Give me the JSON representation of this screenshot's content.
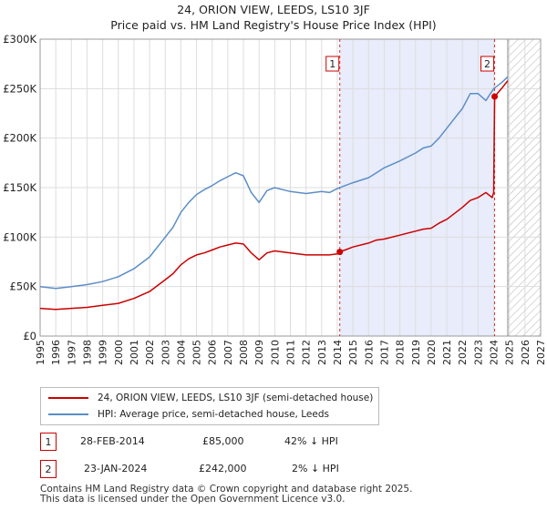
{
  "title": {
    "line1": "24, ORION VIEW, LEEDS, LS10 3JF",
    "line2": "Price paid vs. HM Land Registry's House Price Index (HPI)"
  },
  "chart_data": {
    "type": "line",
    "xlim": [
      1995,
      2027
    ],
    "ylim": [
      0,
      300000
    ],
    "y_ticks": [
      {
        "value": 0,
        "label": "£0"
      },
      {
        "value": 50000,
        "label": "£50K"
      },
      {
        "value": 100000,
        "label": "£100K"
      },
      {
        "value": 150000,
        "label": "£150K"
      },
      {
        "value": 200000,
        "label": "£200K"
      },
      {
        "value": 250000,
        "label": "£250K"
      },
      {
        "value": 300000,
        "label": "£300K"
      }
    ],
    "x_ticks": [
      1995,
      1996,
      1997,
      1998,
      1999,
      2000,
      2001,
      2002,
      2003,
      2004,
      2005,
      2006,
      2007,
      2008,
      2009,
      2010,
      2011,
      2012,
      2013,
      2014,
      2015,
      2016,
      2017,
      2018,
      2019,
      2020,
      2021,
      2022,
      2023,
      2024,
      2025,
      2026,
      2027
    ],
    "grid": true,
    "shaded_region": [
      2014.16,
      2024.06
    ],
    "forecast_start": 2024.9,
    "series": [
      {
        "name": "HPI: Average price, semi-detached house, Leeds",
        "color": "#5b8ec8",
        "x": [
          1995,
          1996,
          1997,
          1998,
          1999,
          2000,
          2001,
          2002,
          2003,
          2003.5,
          2004,
          2004.5,
          2005,
          2005.5,
          2006,
          2006.5,
          2007,
          2007.5,
          2008,
          2008.5,
          2009,
          2009.5,
          2010,
          2010.5,
          2011,
          2012,
          2013,
          2013.5,
          2014,
          2014.5,
          2015,
          2016,
          2016.5,
          2017,
          2018,
          2019,
          2019.5,
          2020,
          2020.5,
          2021,
          2021.5,
          2022,
          2022.5,
          2023,
          2023.5,
          2024,
          2024.5,
          2024.9
        ],
        "values": [
          50000,
          48000,
          50000,
          52000,
          55000,
          60000,
          68000,
          80000,
          100000,
          110000,
          125000,
          135000,
          143000,
          148000,
          152000,
          157000,
          161000,
          165000,
          162000,
          145000,
          135000,
          147000,
          150000,
          148000,
          146000,
          144000,
          146000,
          145000,
          149000,
          152000,
          155000,
          160000,
          165000,
          170000,
          177000,
          185000,
          190000,
          192000,
          200000,
          210000,
          220000,
          230000,
          245000,
          245000,
          238000,
          250000,
          256000,
          262000
        ]
      },
      {
        "name": "24, ORION VIEW, LEEDS, LS10 3JF (semi-detached house)",
        "color": "#cc0000",
        "x": [
          1995,
          1996,
          1997,
          1998,
          1999,
          2000,
          2001,
          2002,
          2003,
          2003.5,
          2004,
          2004.5,
          2005,
          2005.5,
          2006,
          2006.5,
          2007,
          2007.5,
          2008,
          2008.5,
          2009,
          2009.5,
          2010,
          2010.5,
          2011,
          2012,
          2013,
          2013.5,
          2014,
          2014.16,
          2014.5,
          2015,
          2016,
          2016.5,
          2017,
          2018,
          2019,
          2019.5,
          2020,
          2020.5,
          2021,
          2021.5,
          2022,
          2022.5,
          2023,
          2023.5,
          2023.9,
          2024.0,
          2024.06,
          2024.5,
          2024.9
        ],
        "values": [
          28000,
          27000,
          28000,
          29000,
          31000,
          33000,
          38000,
          45000,
          57000,
          63000,
          72000,
          78000,
          82000,
          84000,
          87000,
          90000,
          92000,
          94000,
          93000,
          84000,
          77000,
          84000,
          86000,
          85000,
          84000,
          82000,
          82000,
          82000,
          83000,
          85000,
          87000,
          90000,
          94000,
          97000,
          98000,
          102000,
          106000,
          108000,
          109000,
          114000,
          118000,
          124000,
          130000,
          137000,
          140000,
          145000,
          140000,
          145000,
          242000,
          250000,
          258000
        ]
      }
    ],
    "annotations": [
      {
        "label": "1",
        "x": 2014.16,
        "value": 85000
      },
      {
        "label": "2",
        "x": 2024.06,
        "value": 242000
      }
    ]
  },
  "legend": {
    "entries": [
      {
        "label": "24, ORION VIEW, LEEDS, LS10 3JF (semi-detached house)",
        "color": "#cc0000"
      },
      {
        "label": "HPI: Average price, semi-detached house, Leeds",
        "color": "#5b8ec8"
      }
    ]
  },
  "transactions": [
    {
      "num": "1",
      "date": "28-FEB-2014",
      "price": "£85,000",
      "hpi": "42% ↓ HPI"
    },
    {
      "num": "2",
      "date": "23-JAN-2024",
      "price": "£242,000",
      "hpi": "2% ↓ HPI"
    }
  ],
  "footer": {
    "line1": "Contains HM Land Registry data © Crown copyright and database right 2025.",
    "line2": "This data is licensed under the Open Government Licence v3.0."
  }
}
